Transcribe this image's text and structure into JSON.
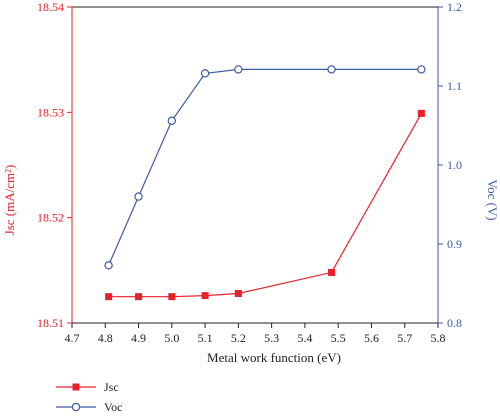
{
  "chart_data": {
    "type": "line",
    "xlabel": "Metal work function (eV)",
    "ylabel_left": "Jsc (mA/cm²)",
    "ylabel_right": "Voc (V)",
    "xlim": [
      4.7,
      5.8
    ],
    "xticks": [
      "4.7",
      "4.8",
      "4.9",
      "5.0",
      "5.1",
      "5.2",
      "5.3",
      "5.4",
      "5.5",
      "5.6",
      "5.7",
      "5.8"
    ],
    "ylim_left": [
      18.51,
      18.54
    ],
    "yticks_left": [
      "18.51",
      "18.52",
      "18.53",
      "18.54"
    ],
    "ylim_right": [
      0.8,
      1.2
    ],
    "yticks_right": [
      "0.8",
      "0.9",
      "1.0",
      "1.1",
      "1.2"
    ],
    "legend_placement": "bottom-left",
    "grid": false,
    "series": [
      {
        "name": "Jsc",
        "axis": "left",
        "color": "#e8202a",
        "marker": "filled-square",
        "x": [
          4.81,
          4.9,
          5.0,
          5.1,
          5.2,
          5.48,
          5.75
        ],
        "y": [
          18.5125,
          18.5125,
          18.5125,
          18.5126,
          18.5128,
          18.5148,
          18.5299
        ]
      },
      {
        "name": "Voc",
        "axis": "right",
        "color": "#3c5aa6",
        "marker": "open-circle",
        "x": [
          4.81,
          4.9,
          5.0,
          5.1,
          5.2,
          5.48,
          5.75
        ],
        "y": [
          0.873,
          0.96,
          1.056,
          1.116,
          1.121,
          1.121,
          1.121
        ]
      }
    ]
  }
}
